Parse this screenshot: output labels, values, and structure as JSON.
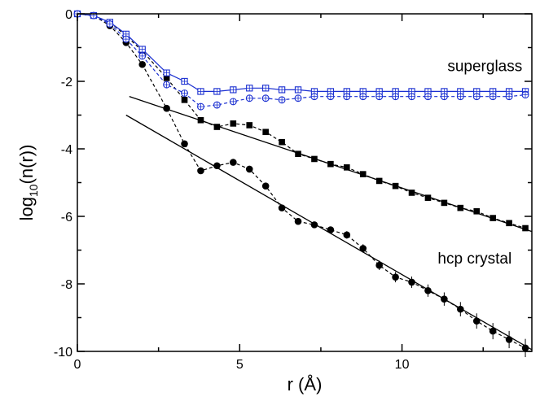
{
  "chart_data": {
    "type": "line",
    "xlabel_main": "r (",
    "xlabel_unit": "Å",
    "xlabel_end": ")",
    "ylabel_main": "log",
    "ylabel_sub": "10",
    "ylabel_end": "(n(r))",
    "xlim": [
      0,
      14
    ],
    "ylim": [
      -10,
      0
    ],
    "x_ticks": [
      0,
      5,
      10
    ],
    "y_ticks": [
      0,
      -2,
      -4,
      -6,
      -8,
      -10
    ],
    "grid": false,
    "annotations": [
      {
        "text": "superglass",
        "x": 11.4,
        "y": -1.7
      },
      {
        "text": "hcp crystal",
        "x": 11.1,
        "y": -7.4
      }
    ],
    "series": [
      {
        "style": "black-circle-filled-dashed",
        "color": "#000000",
        "marker": "circle-filled",
        "line": "dashed",
        "errorbars": true,
        "x": [
          0,
          0.5,
          1.0,
          1.5,
          2.0,
          2.75,
          3.3,
          3.8,
          4.3,
          4.8,
          5.3,
          5.8,
          6.3,
          6.8,
          7.3,
          7.8,
          8.3,
          8.8,
          9.3,
          9.8,
          10.3,
          10.8,
          11.3,
          11.8,
          12.3,
          12.8,
          13.3,
          13.8
        ],
        "y": [
          0,
          -0.05,
          -0.35,
          -0.85,
          -1.5,
          -2.8,
          -3.85,
          -4.65,
          -4.5,
          -4.4,
          -4.6,
          -5.1,
          -5.75,
          -6.15,
          -6.25,
          -6.4,
          -6.55,
          -6.95,
          -7.45,
          -7.8,
          -7.95,
          -8.2,
          -8.45,
          -8.75,
          -9.1,
          -9.4,
          -9.65,
          -9.9
        ]
      },
      {
        "style": "black-square-filled-dashed",
        "color": "#000000",
        "marker": "square-filled",
        "line": "dashed",
        "errorbars": false,
        "x": [
          0,
          0.5,
          1.0,
          1.5,
          2.0,
          2.75,
          3.3,
          3.8,
          4.3,
          4.8,
          5.3,
          5.8,
          6.3,
          6.8,
          7.3,
          7.8,
          8.3,
          8.8,
          9.3,
          9.8,
          10.3,
          10.8,
          11.3,
          11.8,
          12.3,
          12.8,
          13.3,
          13.8
        ],
        "y": [
          0,
          -0.05,
          -0.25,
          -0.65,
          -1.1,
          -1.9,
          -2.55,
          -3.15,
          -3.35,
          -3.25,
          -3.3,
          -3.5,
          -3.8,
          -4.15,
          -4.3,
          -4.45,
          -4.55,
          -4.75,
          -4.95,
          -5.1,
          -5.3,
          -5.45,
          -5.6,
          -5.75,
          -5.85,
          -6.05,
          -6.2,
          -6.35
        ]
      },
      {
        "style": "blue-square-open-solid",
        "color": "#1a2fd1",
        "marker": "square-open",
        "line": "solid",
        "errorbars": false,
        "x": [
          0,
          0.5,
          1.0,
          1.5,
          2.0,
          2.75,
          3.3,
          3.8,
          4.3,
          4.8,
          5.3,
          5.8,
          6.3,
          6.8,
          7.3,
          7.8,
          8.3,
          8.8,
          9.3,
          9.8,
          10.3,
          10.8,
          11.3,
          11.8,
          12.3,
          12.8,
          13.3,
          13.8
        ],
        "y": [
          0,
          -0.05,
          -0.25,
          -0.6,
          -1.05,
          -1.75,
          -2.0,
          -2.3,
          -2.3,
          -2.25,
          -2.2,
          -2.2,
          -2.25,
          -2.25,
          -2.3,
          -2.3,
          -2.3,
          -2.3,
          -2.3,
          -2.3,
          -2.3,
          -2.3,
          -2.3,
          -2.3,
          -2.3,
          -2.3,
          -2.3,
          -2.3
        ]
      },
      {
        "style": "blue-circle-open-dashed",
        "color": "#1a2fd1",
        "marker": "circle-open",
        "line": "dashed",
        "errorbars": false,
        "x": [
          0,
          0.5,
          1.0,
          1.5,
          2.0,
          2.75,
          3.3,
          3.8,
          4.3,
          4.8,
          5.3,
          5.8,
          6.3,
          6.8,
          7.3,
          7.8,
          8.3,
          8.8,
          9.3,
          9.8,
          10.3,
          10.8,
          11.3,
          11.8,
          12.3,
          12.8,
          13.3,
          13.8
        ],
        "y": [
          0,
          -0.05,
          -0.3,
          -0.75,
          -1.25,
          -2.1,
          -2.35,
          -2.75,
          -2.7,
          -2.6,
          -2.5,
          -2.5,
          -2.55,
          -2.5,
          -2.45,
          -2.45,
          -2.45,
          -2.45,
          -2.45,
          -2.45,
          -2.45,
          -2.45,
          -2.45,
          -2.45,
          -2.45,
          -2.45,
          -2.45,
          -2.4
        ]
      }
    ],
    "fit_lines": [
      {
        "color": "#000000",
        "x": [
          1.6,
          14.0
        ],
        "y": [
          -2.45,
          -6.45
        ]
      },
      {
        "color": "#000000",
        "x": [
          1.5,
          14.0
        ],
        "y": [
          -3.0,
          -9.95
        ]
      }
    ]
  }
}
